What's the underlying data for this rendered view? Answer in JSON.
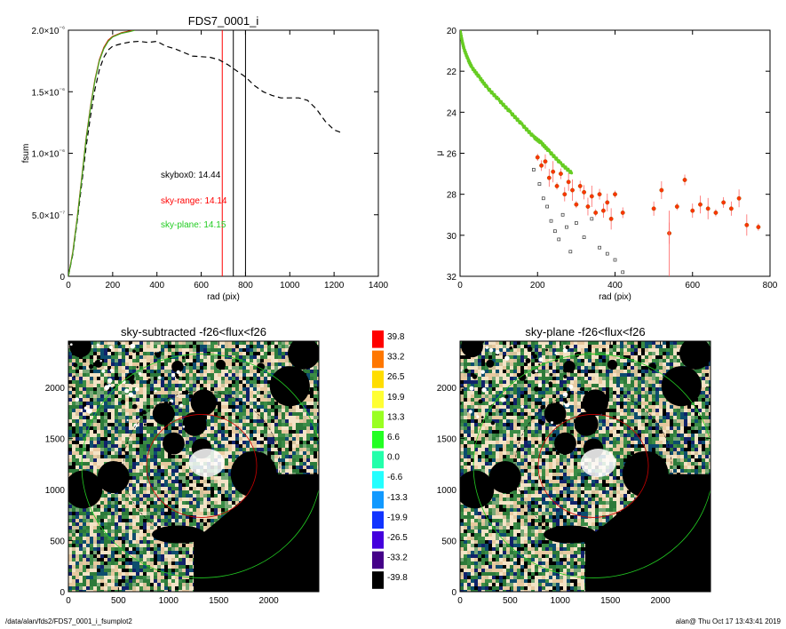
{
  "footer": {
    "path": "/data/alan/fds2/FDS7_0001_i_fsumplot2",
    "stamp": "alan@  Thu Oct 17 13:43:41 2019"
  },
  "chart_data": [
    {
      "type": "line",
      "title": "FDS7_0001_i",
      "xlabel": "rad (pix)",
      "ylabel": "fsum",
      "xlim": [
        0,
        1400
      ],
      "ylim": [
        0,
        2e-06
      ],
      "xticks": [
        0,
        200,
        400,
        600,
        800,
        1000,
        1200,
        1400
      ],
      "yticks": [
        0,
        5e-07,
        1e-06,
        1.5e-06,
        2e-06
      ],
      "ytick_labels": [
        "0",
        "5.0×10⁻⁷",
        "1.0×10⁻⁶",
        "1.5×10⁻⁶",
        "2.0×10⁻⁶"
      ],
      "annotations": [
        {
          "text": "skybox0: 14.44",
          "color": "#000000"
        },
        {
          "text": "sky-range: 14.14",
          "color": "#ff0000"
        },
        {
          "text": "sky-plane: 14.15",
          "color": "#22cc22"
        }
      ],
      "vlines": [
        {
          "x": 695,
          "color": "#ff0000"
        },
        {
          "x": 745,
          "color": "#000000"
        },
        {
          "x": 800,
          "color": "#000000"
        }
      ],
      "series": [
        {
          "style": "dashed",
          "color": "#000000",
          "x": [
            0,
            20,
            40,
            60,
            80,
            100,
            120,
            140,
            160,
            180,
            200,
            240,
            280,
            320,
            360,
            400,
            440,
            480,
            520,
            560,
            600,
            640,
            680,
            720,
            760,
            800,
            840,
            880,
            920,
            960,
            1000,
            1040,
            1080,
            1120,
            1160,
            1200,
            1230
          ],
          "y": [
            0,
            1.8e-07,
            4.5e-07,
            7.5e-07,
            1.05e-06,
            1.3e-06,
            1.52e-06,
            1.68e-06,
            1.78e-06,
            1.84e-06,
            1.87e-06,
            1.89e-06,
            1.905e-06,
            1.91e-06,
            1.9e-06,
            1.91e-06,
            1.87e-06,
            1.85e-06,
            1.82e-06,
            1.79e-06,
            1.785e-06,
            1.78e-06,
            1.76e-06,
            1.72e-06,
            1.67e-06,
            1.62e-06,
            1.55e-06,
            1.5e-06,
            1.47e-06,
            1.45e-06,
            1.45e-06,
            1.45e-06,
            1.43e-06,
            1.36e-06,
            1.26e-06,
            1.19e-06,
            1.17e-06
          ]
        },
        {
          "style": "solid",
          "color": "#cc2200",
          "x": [
            0,
            20,
            40,
            60,
            80,
            100,
            120,
            140,
            160,
            180,
            200,
            240,
            280,
            300
          ],
          "y": [
            0,
            2e-07,
            4.8e-07,
            8e-07,
            1.12e-06,
            1.38e-06,
            1.6e-06,
            1.76e-06,
            1.86e-06,
            1.92e-06,
            1.95e-06,
            1.98e-06,
            1.995e-06,
            2e-06
          ]
        },
        {
          "style": "solid",
          "color": "#44aa22",
          "x": [
            0,
            20,
            40,
            60,
            80,
            100,
            120,
            140,
            160,
            180,
            200,
            240,
            280,
            300
          ],
          "y": [
            0,
            1.9e-07,
            4.7e-07,
            7.9e-07,
            1.11e-06,
            1.37e-06,
            1.59e-06,
            1.75e-06,
            1.85e-06,
            1.91e-06,
            1.945e-06,
            1.975e-06,
            1.99e-06,
            2e-06
          ]
        }
      ]
    },
    {
      "type": "scatter",
      "xlabel": "rad (pix)",
      "ylabel": "μ",
      "xlim": [
        0,
        800
      ],
      "ylim": [
        32,
        20
      ],
      "xticks": [
        0,
        200,
        400,
        600,
        800
      ],
      "yticks": [
        20,
        22,
        24,
        26,
        28,
        30,
        32
      ],
      "series": [
        {
          "marker": "dense-dots",
          "color": "#66cc22",
          "x": [
            0,
            5,
            10,
            20,
            30,
            50,
            70,
            100,
            130,
            160,
            190,
            210,
            230,
            260,
            290
          ],
          "y": [
            20.0,
            20.5,
            20.9,
            21.4,
            21.8,
            22.3,
            22.8,
            23.4,
            24.0,
            24.6,
            25.2,
            25.5,
            25.9,
            26.5,
            27.0
          ]
        },
        {
          "marker": "dot-errorbar",
          "color": "#ff3300",
          "x": [
            200,
            210,
            220,
            230,
            240,
            250,
            260,
            270,
            280,
            290,
            300,
            310,
            320,
            330,
            340,
            350,
            360,
            370,
            380,
            390,
            400,
            420,
            500,
            520,
            540,
            560,
            580,
            600,
            620,
            640,
            660,
            680,
            700,
            720,
            740,
            770
          ],
          "y": [
            26.2,
            26.6,
            26.4,
            27.2,
            26.9,
            27.6,
            27.0,
            28.0,
            27.4,
            27.8,
            28.5,
            27.6,
            27.9,
            28.6,
            28.1,
            28.9,
            28.0,
            28.8,
            28.4,
            29.2,
            28.0,
            28.9,
            28.7,
            27.8,
            29.9,
            28.6,
            27.3,
            28.8,
            28.5,
            28.7,
            28.9,
            28.4,
            28.7,
            28.2,
            29.5,
            29.6
          ]
        },
        {
          "marker": "open-square",
          "color": "#333333",
          "x": [
            190,
            205,
            215,
            225,
            235,
            245,
            255,
            265,
            275,
            285,
            300,
            320,
            340,
            360,
            380,
            400,
            420
          ],
          "y": [
            26.8,
            27.5,
            28.2,
            28.6,
            29.3,
            29.8,
            30.2,
            29.0,
            29.6,
            30.8,
            29.4,
            30.1,
            29.2,
            30.6,
            30.9,
            31.2,
            31.8
          ]
        }
      ]
    },
    {
      "type": "heatmap",
      "title": "sky-subtracted -f26<flux<f26",
      "xlim": [
        0,
        2500
      ],
      "ylim": [
        0,
        2450
      ],
      "xticks": [
        0,
        500,
        1000,
        1500,
        2000
      ],
      "yticks": [
        0,
        500,
        1000,
        1500,
        2000
      ]
    },
    {
      "type": "heatmap",
      "title": "sky-plane -f26<flux<f26",
      "xlim": [
        0,
        2500
      ],
      "ylim": [
        0,
        2450
      ],
      "xticks": [
        0,
        500,
        1000,
        1500,
        2000
      ],
      "yticks": [
        0,
        500,
        1000,
        1500,
        2000
      ]
    }
  ],
  "colorbar": {
    "labels": [
      "39.8",
      "33.2",
      "26.5",
      "19.9",
      "13.3",
      "6.6",
      "0.0",
      "-6.6",
      "-13.3",
      "-19.9",
      "-26.5",
      "-33.2",
      "-39.8"
    ],
    "colors": [
      "#ff0000",
      "#ff7700",
      "#ffdd00",
      "#ffff33",
      "#99ff22",
      "#22ff22",
      "#22ffaa",
      "#22ffff",
      "#1199ff",
      "#1133ff",
      "#4400dd",
      "#440088",
      "#000000"
    ]
  },
  "heatmap_palette": [
    "#000000",
    "#f3e3c6",
    "#e8c9a0",
    "#2d7a3a",
    "#3b8c46",
    "#0d4d6e",
    "#11226a",
    "#77a877",
    "#d4c29a"
  ]
}
